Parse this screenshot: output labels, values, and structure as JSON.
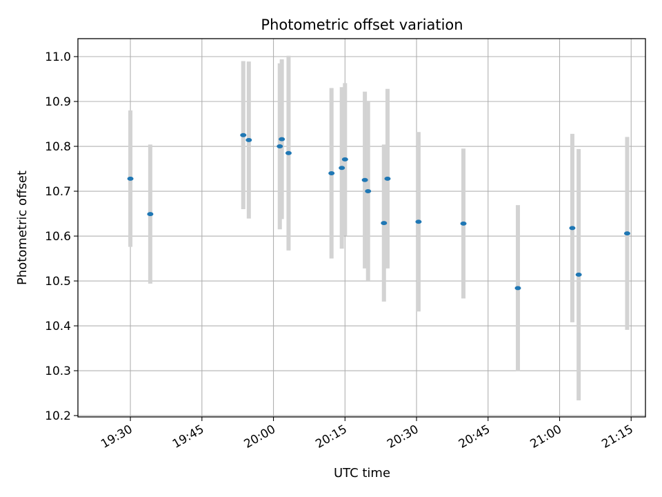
{
  "chart_data": {
    "type": "scatter",
    "title": "Photometric offset variation",
    "xlabel": "UTC time",
    "ylabel": "Photometric offset",
    "xlim": [
      "19:19",
      "21:18"
    ],
    "ylim": [
      10.197,
      11.04
    ],
    "xticks": [
      "19:30",
      "19:45",
      "20:00",
      "20:15",
      "20:30",
      "20:45",
      "21:00",
      "21:15"
    ],
    "yticks": [
      "10.2",
      "10.3",
      "10.4",
      "10.5",
      "10.6",
      "10.7",
      "10.8",
      "10.9",
      "11.0"
    ],
    "grid": true,
    "point_color": "#1f77b4",
    "errorbar_color": "#d3d3d3",
    "points": [
      {
        "x": "19:30:00",
        "y": 10.728,
        "err": 0.152
      },
      {
        "x": "19:34:10",
        "y": 10.649,
        "err": 0.155
      },
      {
        "x": "19:53:40",
        "y": 10.825,
        "err": 0.165
      },
      {
        "x": "19:54:50",
        "y": 10.814,
        "err": 0.175
      },
      {
        "x": "20:01:20",
        "y": 10.8,
        "err": 0.185
      },
      {
        "x": "20:01:45",
        "y": 10.816,
        "err": 0.178
      },
      {
        "x": "20:03:10",
        "y": 10.785,
        "err": 0.217
      },
      {
        "x": "20:12:10",
        "y": 10.74,
        "err": 0.19
      },
      {
        "x": "20:14:20",
        "y": 10.752,
        "err": 0.18
      },
      {
        "x": "20:15:00",
        "y": 10.771,
        "err": 0.17
      },
      {
        "x": "20:19:10",
        "y": 10.725,
        "err": 0.197
      },
      {
        "x": "20:19:50",
        "y": 10.7,
        "err": 0.2
      },
      {
        "x": "20:23:10",
        "y": 10.629,
        "err": 0.175
      },
      {
        "x": "20:23:55",
        "y": 10.728,
        "err": 0.2
      },
      {
        "x": "20:30:25",
        "y": 10.632,
        "err": 0.2
      },
      {
        "x": "20:39:50",
        "y": 10.628,
        "err": 0.167
      },
      {
        "x": "20:51:15",
        "y": 10.484,
        "err": 0.185
      },
      {
        "x": "21:02:40",
        "y": 10.618,
        "err": 0.21
      },
      {
        "x": "21:04:00",
        "y": 10.514,
        "err": 0.28
      },
      {
        "x": "21:14:10",
        "y": 10.606,
        "err": 0.215
      }
    ]
  }
}
